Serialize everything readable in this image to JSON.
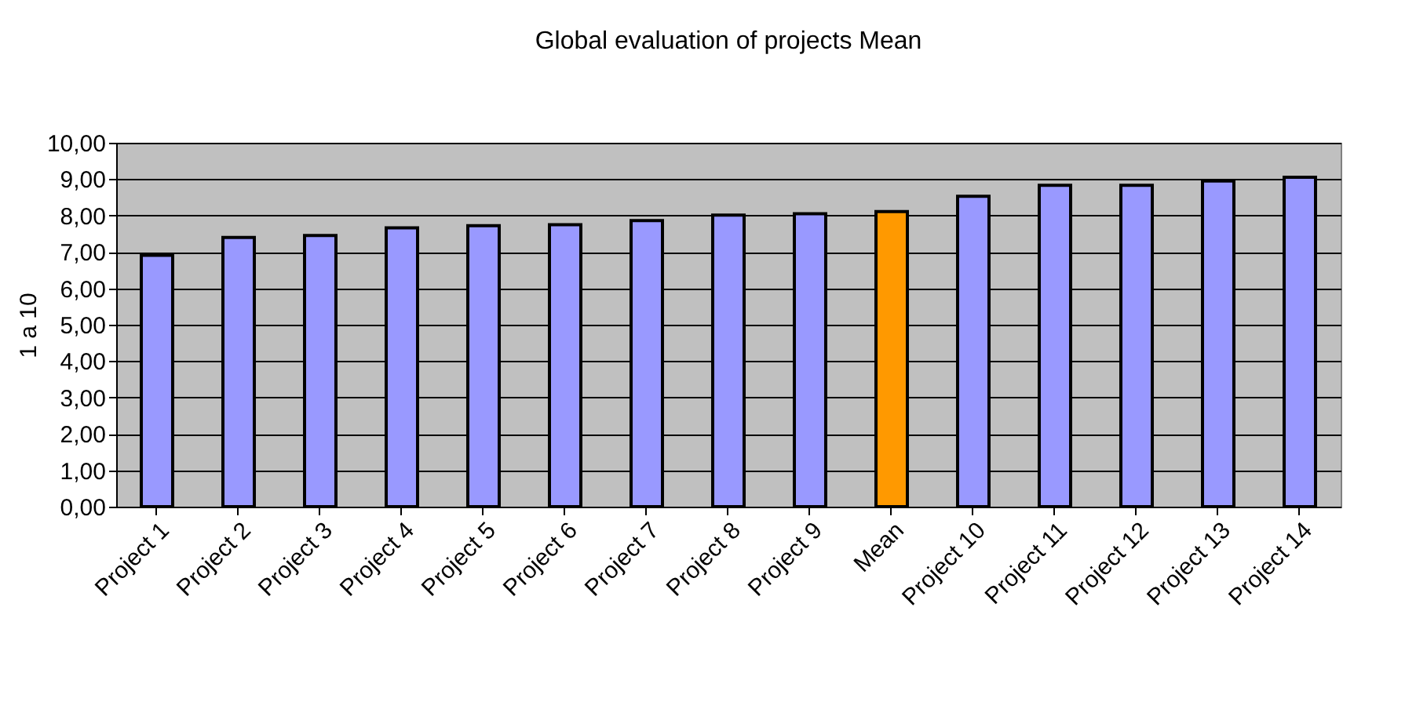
{
  "chart_data": {
    "type": "bar",
    "title": "Global evaluation of projects Mean",
    "ylabel": "1 a 10",
    "categories": [
      "Project 1",
      "Project 2",
      "Project 3",
      "Project 4",
      "Project 5",
      "Project 6",
      "Project 7",
      "Project 8",
      "Project 9",
      "Mean",
      "Project 10",
      "Project 11",
      "Project 12",
      "Project 13",
      "Project 14"
    ],
    "values": [
      6.91,
      7.4,
      7.45,
      7.66,
      7.72,
      7.75,
      7.86,
      8.01,
      8.05,
      8.11,
      8.53,
      8.83,
      8.83,
      8.95,
      9.05
    ],
    "colors": [
      "#9999ff",
      "#9999ff",
      "#9999ff",
      "#9999ff",
      "#9999ff",
      "#9999ff",
      "#9999ff",
      "#9999ff",
      "#9999ff",
      "#ff9900",
      "#9999ff",
      "#9999ff",
      "#9999ff",
      "#9999ff",
      "#9999ff"
    ],
    "ylim": [
      0,
      10
    ],
    "yticks": [
      {
        "value": 0,
        "label": "0,00"
      },
      {
        "value": 1,
        "label": "1,00"
      },
      {
        "value": 2,
        "label": "2,00"
      },
      {
        "value": 3,
        "label": "3,00"
      },
      {
        "value": 4,
        "label": "4,00"
      },
      {
        "value": 5,
        "label": "5,00"
      },
      {
        "value": 6,
        "label": "6,00"
      },
      {
        "value": 7,
        "label": "7,00"
      },
      {
        "value": 8,
        "label": "8,00"
      },
      {
        "value": 9,
        "label": "9,00"
      },
      {
        "value": 10,
        "label": "10,00"
      }
    ],
    "grid": "y"
  }
}
